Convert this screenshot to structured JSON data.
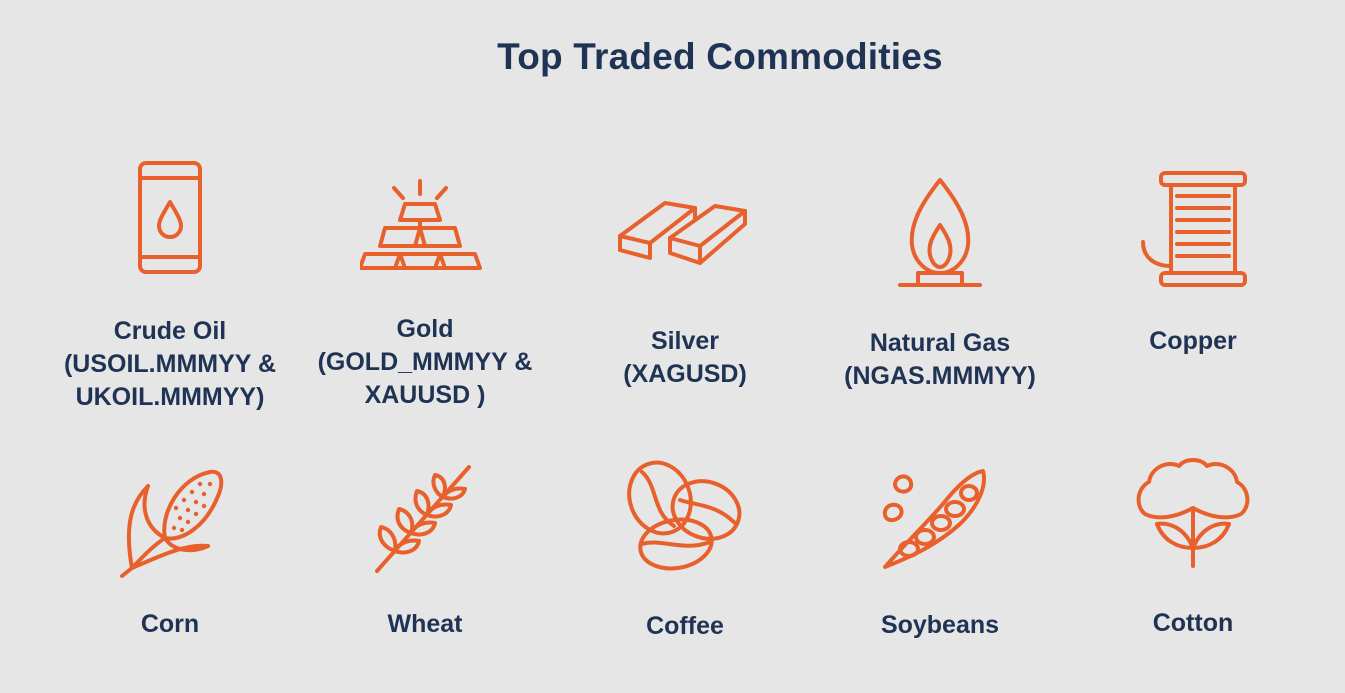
{
  "title": "Top Traded Commodities",
  "accent_color": "#e8602c",
  "text_color": "#1f3355",
  "row1": [
    {
      "icon": "oil-barrel-icon",
      "lines": [
        "Crude Oil",
        "(USOIL.MMMYY &",
        "UKOIL.MMMYY)"
      ]
    },
    {
      "icon": "gold-bars-icon",
      "lines": [
        "Gold",
        "(GOLD_MMMYY &",
        "XAUUSD )"
      ]
    },
    {
      "icon": "silver-bars-icon",
      "lines": [
        "Silver",
        "(XAGUSD)"
      ]
    },
    {
      "icon": "gas-flame-icon",
      "lines": [
        "Natural Gas",
        "(NGAS.MMMYY)"
      ]
    },
    {
      "icon": "copper-spool-icon",
      "lines": [
        "Copper"
      ]
    }
  ],
  "row2": [
    {
      "icon": "corn-icon",
      "lines": [
        "Corn"
      ]
    },
    {
      "icon": "wheat-icon",
      "lines": [
        "Wheat"
      ]
    },
    {
      "icon": "coffee-beans-icon",
      "lines": [
        "Coffee"
      ]
    },
    {
      "icon": "soybeans-icon",
      "lines": [
        "Soybeans"
      ]
    },
    {
      "icon": "cotton-icon",
      "lines": [
        "Cotton"
      ]
    }
  ]
}
